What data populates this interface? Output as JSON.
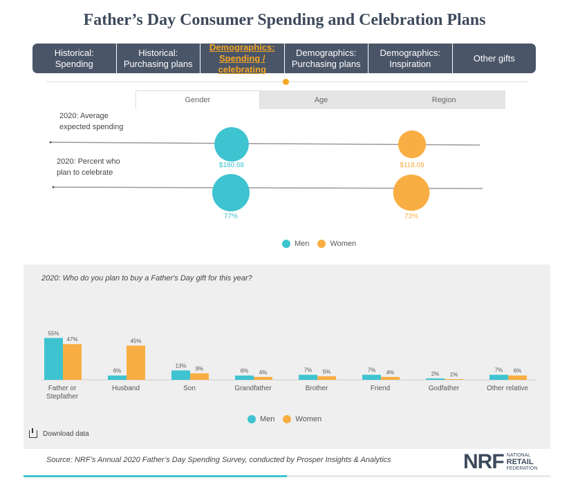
{
  "title": "Father’s Day Consumer Spending and Celebration Plans",
  "nav": [
    {
      "label": "Historical:\nSpending",
      "active": false
    },
    {
      "label": "Historical:\nPurchasing plans",
      "active": false
    },
    {
      "label": "Demographics:\nSpending / celebrating",
      "active": true
    },
    {
      "label": "Demographics:\nPurchasing plans",
      "active": false
    },
    {
      "label": "Demographics:\nInspiration",
      "active": false
    },
    {
      "label": "Other gifts",
      "active": false
    }
  ],
  "tabs": [
    {
      "label": "Gender",
      "active": true
    },
    {
      "label": "Age",
      "active": false
    },
    {
      "label": "Region",
      "active": false
    }
  ],
  "colors": {
    "men": "#3ec3d0",
    "women": "#f8ae42"
  },
  "chart_data": [
    {
      "type": "scatter",
      "title": "",
      "rows": [
        {
          "label": "2020: Average\nexpected spending",
          "men": 180.68,
          "women": 118.09,
          "men_label": "$180.68",
          "women_label": "$118.09"
        },
        {
          "label": "2020: Percent who\nplan to celebrate",
          "men": 77,
          "women": 73,
          "men_label": "77%",
          "women_label": "73%"
        }
      ],
      "legend": [
        "Men",
        "Women"
      ]
    },
    {
      "type": "bar",
      "title": "2020: Who do you plan to buy a Father's Day gift for this year?",
      "categories": [
        "Father or\nStepfather",
        "Husband",
        "Son",
        "Grandfather",
        "Brother",
        "Friend",
        "Godfather",
        "Other relative"
      ],
      "series": [
        {
          "name": "Men",
          "values": [
            55,
            6,
            13,
            6,
            7,
            7,
            2,
            7
          ]
        },
        {
          "name": "Women",
          "values": [
            47,
            45,
            9,
            4,
            5,
            4,
            1,
            6
          ]
        }
      ],
      "ylim": [
        0,
        60
      ],
      "legend": [
        "Men",
        "Women"
      ]
    }
  ],
  "download_label": "Download data",
  "source": "Source: NRF’s Annual 2020 Father’s Day Spending Survey, conducted by Prosper Insights & Analytics",
  "logo": {
    "big": "NRF",
    "small_top": "NATIONAL",
    "small_mid": "RETAIL",
    "small_bottom": "FEDERATION"
  }
}
